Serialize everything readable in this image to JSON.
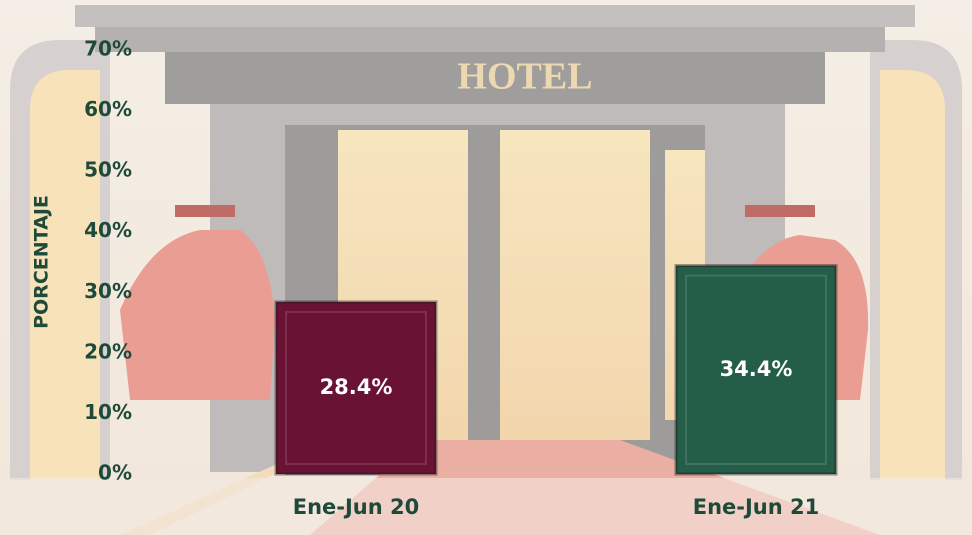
{
  "chart_data": {
    "type": "bar",
    "sign_text": "HOTEL",
    "y_axis_label": "PORCENTAJE",
    "categories": [
      "Ene-Jun 20",
      "Ene-Jun 21"
    ],
    "values": [
      28.4,
      34.4
    ],
    "value_labels": [
      "28.4%",
      "34.4%"
    ],
    "colors": [
      "#6a1233",
      "#245e48"
    ],
    "ylim": [
      0,
      70
    ],
    "yticks": [
      {
        "value": 0,
        "label": "0%"
      },
      {
        "value": 10,
        "label": "10%"
      },
      {
        "value": 20,
        "label": "20%"
      },
      {
        "value": 30,
        "label": "30%"
      },
      {
        "value": 40,
        "label": "40%"
      },
      {
        "value": 50,
        "label": "50%"
      },
      {
        "value": 60,
        "label": "60%"
      },
      {
        "value": 70,
        "label": "70%"
      }
    ],
    "grid": false
  }
}
